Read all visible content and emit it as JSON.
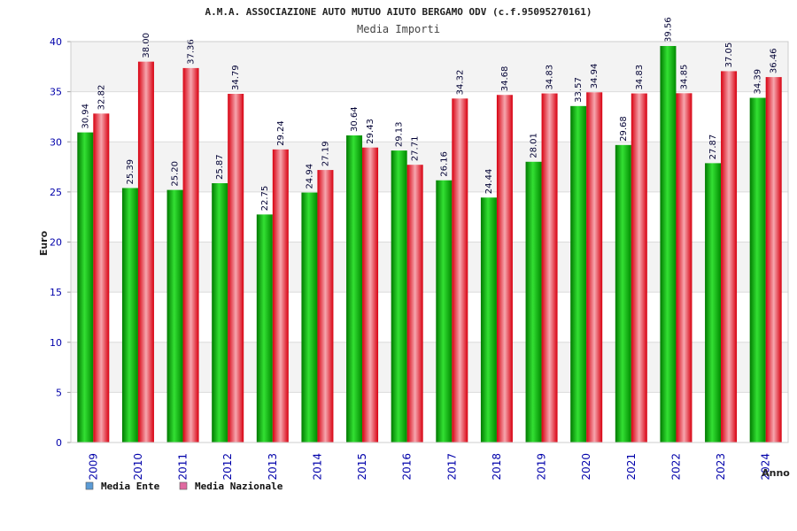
{
  "chart_data": {
    "type": "bar",
    "title": "A.M.A. ASSOCIAZIONE AUTO MUTUO AIUTO BERGAMO ODV (c.f.95095270161)",
    "subtitle": "Media Importi",
    "xlabel": "Anno",
    "ylabel": "Euro",
    "ylim": [
      0,
      40
    ],
    "yticks": [
      0,
      5,
      10,
      15,
      20,
      25,
      30,
      35,
      40
    ],
    "categories": [
      "2009",
      "2010",
      "2011",
      "2012",
      "2013",
      "2014",
      "2015",
      "2016",
      "2017",
      "2018",
      "2019",
      "2020",
      "2021",
      "2022",
      "2023",
      "2024"
    ],
    "series": [
      {
        "name": "Media Ente",
        "color": "#00b400",
        "values": [
          30.94,
          25.39,
          25.2,
          25.87,
          22.75,
          24.94,
          30.64,
          29.13,
          26.16,
          24.44,
          28.01,
          33.57,
          29.68,
          39.56,
          27.87,
          34.39
        ],
        "labels": [
          "30.94",
          "25.39",
          "25.20",
          "25.87",
          "22.75",
          "24.94",
          "30.64",
          "29.13",
          "26.16",
          "24.44",
          "28.01",
          "33.57",
          "29.68",
          "39.56",
          "27.87",
          "34.39"
        ]
      },
      {
        "name": "Media Nazionale",
        "color": "#e8000f",
        "values": [
          32.82,
          38.0,
          37.36,
          34.79,
          29.24,
          27.19,
          29.43,
          27.71,
          34.32,
          34.68,
          34.83,
          34.94,
          34.83,
          34.85,
          37.05,
          36.46
        ],
        "labels": [
          "32.82",
          "38.00",
          "37.36",
          "34.79",
          "29.24",
          "27.19",
          "29.43",
          "27.71",
          "34.32",
          "34.68",
          "34.83",
          "34.94",
          "34.83",
          "34.85",
          "37.05",
          "36.46"
        ]
      }
    ],
    "legend": [
      {
        "label": "Media Ente",
        "color": "#5b9bd5"
      },
      {
        "label": "Media Nazionale",
        "color": "#e06aa0"
      }
    ],
    "grid": true,
    "legend_position": "bottom-left"
  }
}
